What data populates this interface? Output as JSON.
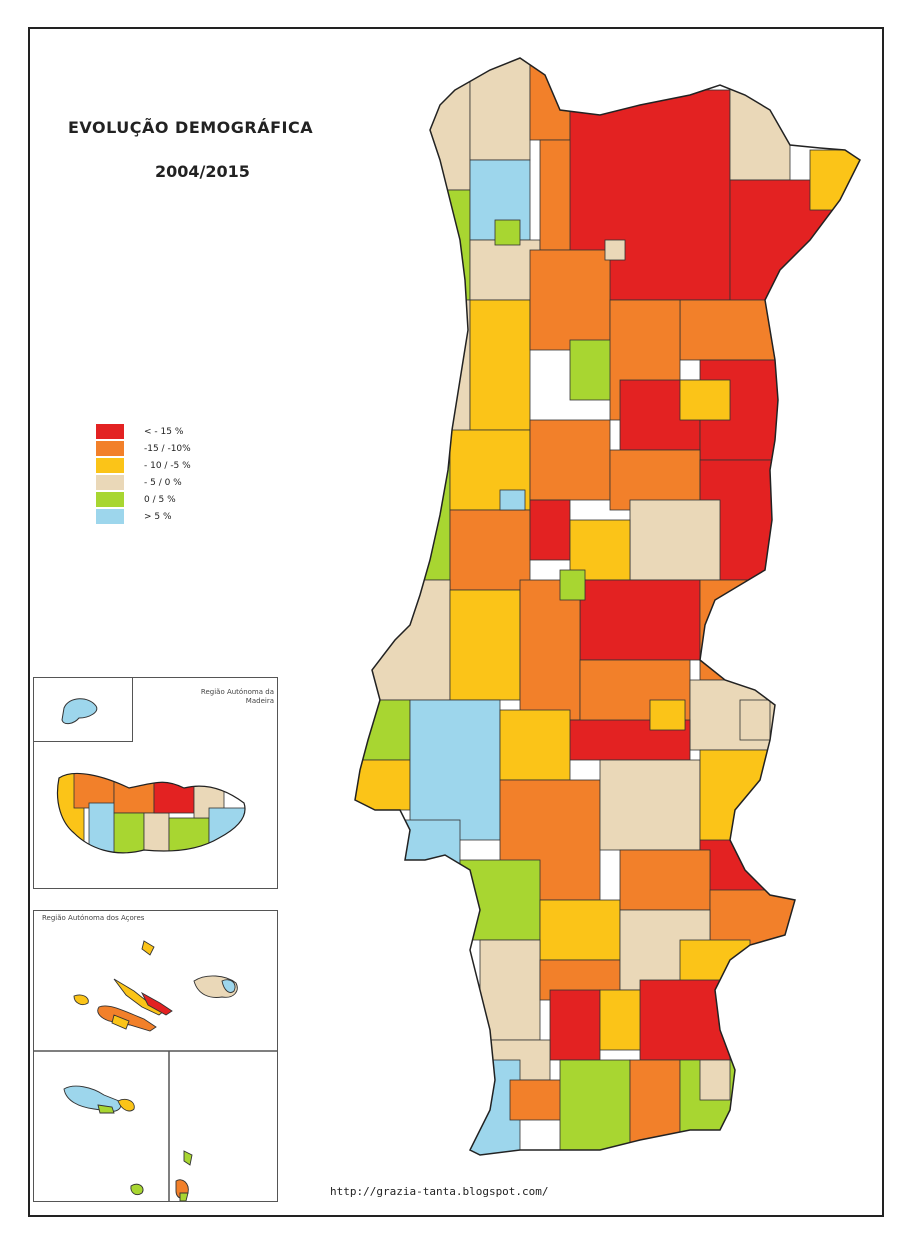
{
  "title": "EVOLUÇÃO  DEMOGRÁFICA",
  "period": "2004/2015",
  "legend": [
    {
      "label": "< - 15 %",
      "color": "#e32222"
    },
    {
      "label": "-15 / -10%",
      "color": "#f2802a"
    },
    {
      "label": "- 10 / -5 %",
      "color": "#fbc418"
    },
    {
      "label": "- 5 / 0 %",
      "color": "#ead8b8"
    },
    {
      "label": "0 / 5 %",
      "color": "#a8d631"
    },
    {
      "label": "> 5 %",
      "color": "#9dd6ec"
    }
  ],
  "insets": {
    "madeira_title": "Região Autónoma da Madeira",
    "azores_title": "Região Autónoma dos Açores"
  },
  "source_url": "http://grazia-tanta.blogspot.com/"
}
